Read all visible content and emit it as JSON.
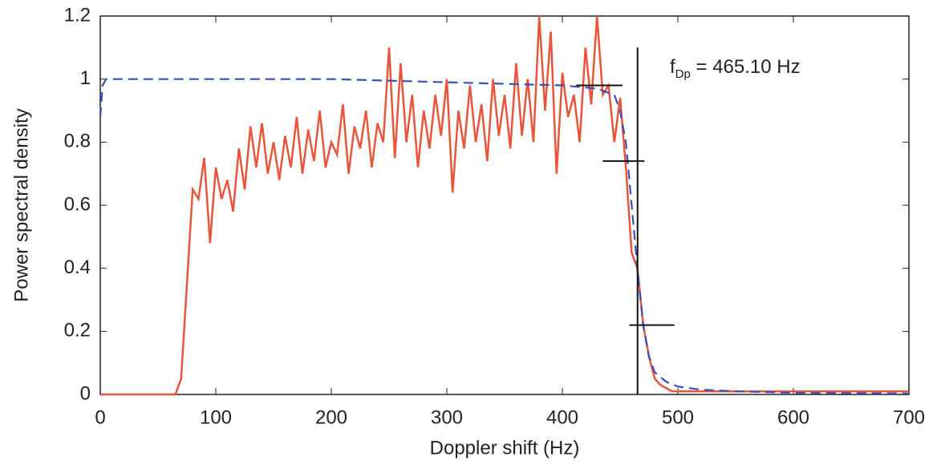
{
  "chart_data": {
    "type": "line",
    "xlabel": "Doppler shift (Hz)",
    "ylabel": "Power spectral density",
    "xlim": [
      0,
      700
    ],
    "ylim": [
      0,
      1.2
    ],
    "xticks": [
      0,
      100,
      200,
      300,
      400,
      500,
      600,
      700
    ],
    "yticks": [
      0,
      0.2,
      0.4,
      0.6,
      0.8,
      1,
      1.2
    ],
    "series": [
      {
        "color": "#e8553a",
        "dash": false,
        "x": [
          0,
          65,
          70,
          75,
          80,
          85,
          90,
          95,
          100,
          105,
          110,
          115,
          120,
          125,
          130,
          135,
          140,
          145,
          150,
          155,
          160,
          165,
          170,
          175,
          180,
          185,
          190,
          195,
          200,
          205,
          210,
          215,
          220,
          225,
          230,
          235,
          240,
          245,
          250,
          255,
          260,
          265,
          270,
          275,
          280,
          285,
          290,
          295,
          300,
          305,
          310,
          315,
          320,
          325,
          330,
          335,
          340,
          345,
          350,
          355,
          360,
          365,
          370,
          375,
          380,
          385,
          390,
          395,
          400,
          405,
          410,
          415,
          420,
          425,
          430,
          435,
          440,
          445,
          450,
          455,
          460,
          465,
          470,
          475,
          480,
          485,
          490,
          495,
          500,
          600,
          700
        ],
        "values": [
          0,
          0,
          0.05,
          0.35,
          0.65,
          0.62,
          0.75,
          0.48,
          0.72,
          0.62,
          0.68,
          0.58,
          0.78,
          0.65,
          0.85,
          0.72,
          0.86,
          0.7,
          0.8,
          0.68,
          0.82,
          0.72,
          0.88,
          0.7,
          0.84,
          0.74,
          0.9,
          0.72,
          0.8,
          0.76,
          0.92,
          0.7,
          0.85,
          0.78,
          0.9,
          0.72,
          0.86,
          0.8,
          1.1,
          0.75,
          1.05,
          0.8,
          0.95,
          0.72,
          0.9,
          0.78,
          0.95,
          0.82,
          1.0,
          0.64,
          0.9,
          0.78,
          0.98,
          0.8,
          0.92,
          0.74,
          1.0,
          0.82,
          0.95,
          0.78,
          1.05,
          0.82,
          1.0,
          0.8,
          1.2,
          0.9,
          1.15,
          0.7,
          1.02,
          0.88,
          0.95,
          0.8,
          1.1,
          0.92,
          1.2,
          0.95,
          0.98,
          0.8,
          0.94,
          0.72,
          0.45,
          0.4,
          0.22,
          0.12,
          0.05,
          0.03,
          0.02,
          0.01,
          0.01,
          0.01,
          0.01
        ]
      },
      {
        "color": "#3a4fb8",
        "dash": true,
        "x": [
          0,
          2,
          5,
          10,
          50,
          100,
          200,
          300,
          400,
          430,
          445,
          450,
          455,
          460,
          465,
          470,
          475,
          480,
          490,
          500,
          520,
          550,
          600,
          700
        ],
        "values": [
          0.88,
          0.98,
          1.0,
          1.0,
          1.0,
          1.0,
          1.0,
          0.99,
          0.98,
          0.97,
          0.95,
          0.9,
          0.8,
          0.6,
          0.4,
          0.22,
          0.12,
          0.07,
          0.04,
          0.025,
          0.015,
          0.01,
          0.005,
          0.003
        ]
      }
    ],
    "vline": 465.1,
    "markers": [
      {
        "x": [
          412,
          452
        ],
        "y": 0.98
      },
      {
        "x": [
          435,
          471
        ],
        "y": 0.74
      },
      {
        "x": [
          458,
          497
        ],
        "y": 0.22
      }
    ],
    "annotation": {
      "symbol": "f",
      "subscript": "Dp",
      "text": " = 465.10 Hz"
    }
  }
}
